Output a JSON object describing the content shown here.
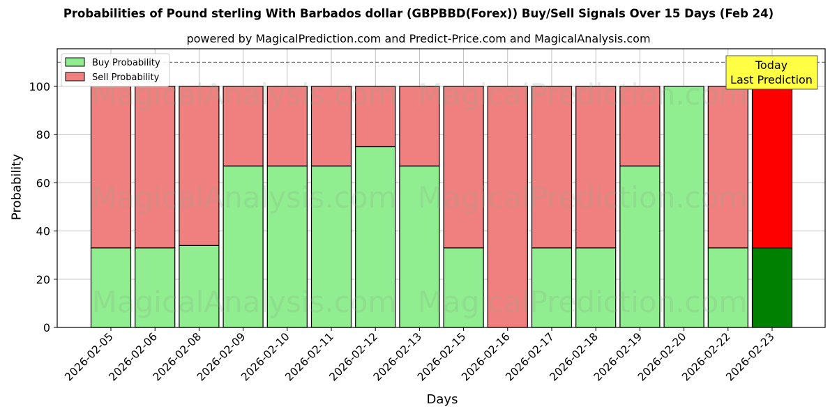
{
  "header": {
    "title": "Probabilities of Pound sterling With Barbados dollar (GBPBBD(Forex)) Buy/Sell Signals Over 15 Days (Feb 24)",
    "subtitle": "powered by MagicalPrediction.com and Predict-Price.com and MagicalAnalysis.com"
  },
  "legend": {
    "buy_label": "Buy Probability",
    "sell_label": "Sell Probability"
  },
  "annotation": {
    "line1": "Today",
    "line2": "Last Prediction"
  },
  "watermarks": [
    "MagicalAnalysis.com",
    "MagicalPrediction.com"
  ],
  "colors": {
    "buy": "#90ee90",
    "sell": "#f08080",
    "buy_today": "#008000",
    "sell_today": "#ff0000",
    "annotation_bg": "#ffff44",
    "grid": "#b0b0b0"
  },
  "chart_data": {
    "type": "bar",
    "stacked": true,
    "title": "Probabilities of Pound sterling With Barbados dollar (GBPBBD(Forex)) Buy/Sell Signals Over 15 Days (Feb 24)",
    "subtitle": "powered by MagicalPrediction.com and Predict-Price.com and MagicalAnalysis.com",
    "xlabel": "Days",
    "ylabel": "Probability",
    "ylim": [
      0,
      115
    ],
    "yticks": [
      0,
      20,
      40,
      60,
      80,
      100
    ],
    "grid": true,
    "legend_position": "upper left",
    "reference_line": {
      "y": 110,
      "style": "dashed"
    },
    "categories": [
      "2026-02-05",
      "2026-02-06",
      "2026-02-08",
      "2026-02-09",
      "2026-02-10",
      "2026-02-11",
      "2026-02-12",
      "2026-02-13",
      "2026-02-15",
      "2026-02-16",
      "2026-02-17",
      "2026-02-18",
      "2026-02-19",
      "2026-02-20",
      "2026-02-22",
      "2026-02-23"
    ],
    "series": [
      {
        "name": "Buy Probability",
        "values": [
          33,
          33,
          34,
          67,
          67,
          67,
          75,
          67,
          33,
          0,
          33,
          33,
          67,
          100,
          33,
          33
        ]
      },
      {
        "name": "Sell Probability",
        "values": [
          67,
          67,
          66,
          33,
          33,
          33,
          25,
          33,
          67,
          100,
          67,
          67,
          33,
          0,
          67,
          67
        ]
      }
    ],
    "highlight_last": true,
    "annotations": [
      "Today\nLast Prediction"
    ]
  }
}
